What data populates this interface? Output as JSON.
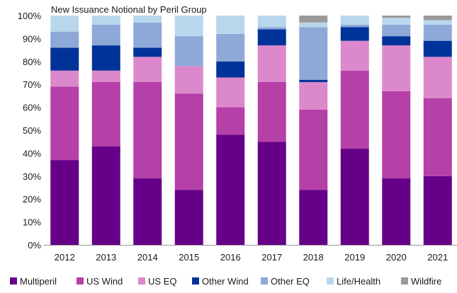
{
  "chart_data": {
    "type": "bar",
    "stacked": true,
    "title": "New Issuance Notional by Peril Group",
    "categories": [
      "2012",
      "2013",
      "2014",
      "2015",
      "2016",
      "2017",
      "2018",
      "2019",
      "2020",
      "2021"
    ],
    "ylim": [
      0,
      100
    ],
    "y_ticks": [
      "0%",
      "10%",
      "20%",
      "30%",
      "40%",
      "50%",
      "60%",
      "70%",
      "80%",
      "90%",
      "100%"
    ],
    "grid": false,
    "legend_position": "bottom",
    "series": [
      {
        "name": "Multiperil",
        "color": "#660088",
        "values": [
          37,
          43,
          29,
          24,
          48,
          45,
          24,
          42,
          29,
          30
        ]
      },
      {
        "name": "US Wind",
        "color": "#b540a8",
        "values": [
          32,
          28,
          42,
          42,
          12,
          26,
          35,
          34,
          38,
          34
        ]
      },
      {
        "name": "US EQ",
        "color": "#dc88cc",
        "values": [
          7,
          5,
          11,
          12,
          13,
          16,
          12,
          13,
          20,
          18
        ]
      },
      {
        "name": "Other Wind",
        "color": "#00339a",
        "values": [
          10,
          11,
          4,
          0,
          7,
          7,
          1,
          6,
          4,
          7
        ]
      },
      {
        "name": "Other EQ",
        "color": "#8ea8d8",
        "values": [
          7,
          9,
          11,
          13,
          12,
          1,
          23,
          1,
          5,
          7
        ]
      },
      {
        "name": "Life/Health",
        "color": "#b9d7ec",
        "values": [
          7,
          4,
          3,
          9,
          8,
          5,
          2,
          4,
          3,
          2
        ]
      },
      {
        "name": "Wildfire",
        "color": "#9a9a9a",
        "values": [
          0,
          0,
          0,
          0,
          0,
          0,
          3,
          0,
          1,
          2
        ]
      }
    ]
  }
}
